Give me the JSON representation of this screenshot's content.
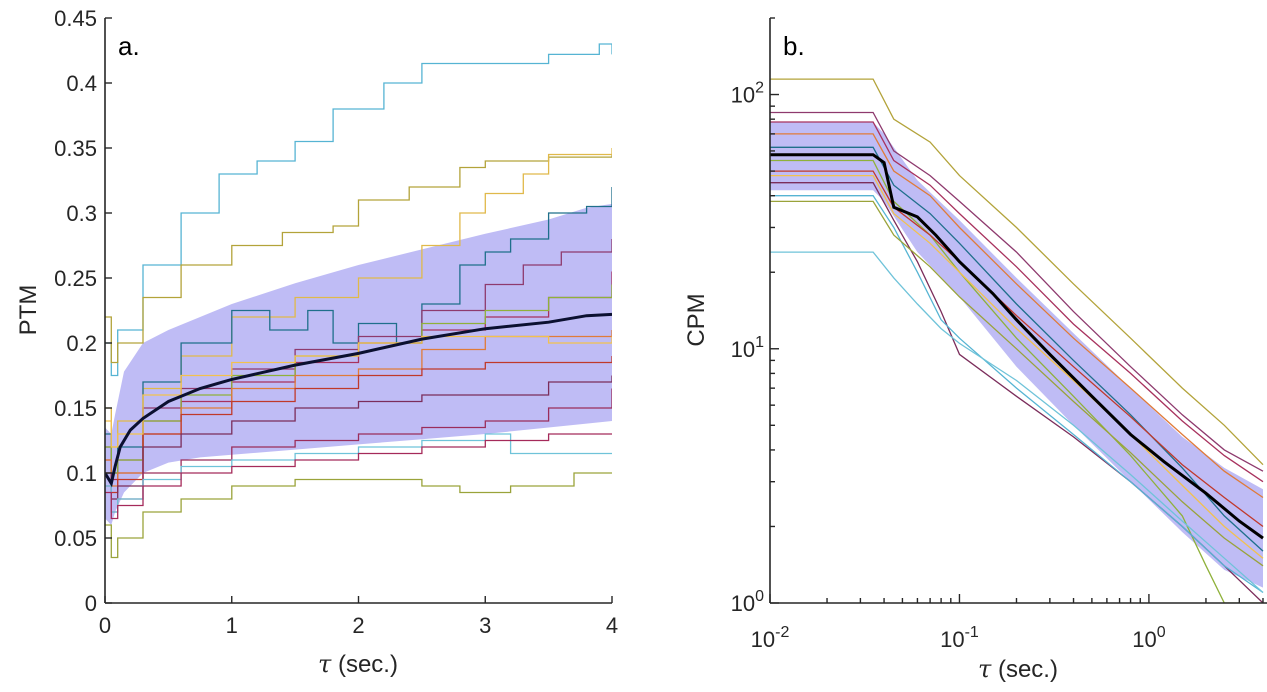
{
  "chart_data": [
    {
      "type": "line",
      "panel_label": "a.",
      "xlabel_symbol": "τ",
      "xlabel_text": " (sec.)",
      "ylabel": "PTM",
      "xlim": [
        0,
        4
      ],
      "ylim": [
        0,
        0.45
      ],
      "xticks": [
        0,
        1,
        2,
        3,
        4
      ],
      "xtick_labels": [
        "0",
        "1",
        "2",
        "3",
        "4"
      ],
      "yticks": [
        0,
        0.05,
        0.1,
        0.15,
        0.2,
        0.25,
        0.3,
        0.35,
        0.4,
        0.45
      ],
      "ytick_labels": [
        "0",
        "0.05",
        "0.1",
        "0.15",
        "0.2",
        "0.25",
        "0.3",
        "0.35",
        "0.4",
        "0.45"
      ],
      "grid": false,
      "band_color": "#a9a6f2",
      "mean_color": "#0b1030",
      "band": {
        "x": [
          0,
          0.05,
          0.08,
          0.15,
          0.3,
          0.5,
          0.75,
          1.0,
          1.5,
          2.0,
          2.5,
          3.0,
          3.5,
          3.8,
          4.0
        ],
        "lower": [
          0.065,
          0.06,
          0.07,
          0.085,
          0.1,
          0.108,
          0.112,
          0.114,
          0.118,
          0.122,
          0.126,
          0.13,
          0.135,
          0.138,
          0.14
        ],
        "upper": [
          0.135,
          0.13,
          0.145,
          0.178,
          0.2,
          0.21,
          0.22,
          0.23,
          0.246,
          0.26,
          0.272,
          0.284,
          0.295,
          0.304,
          0.307
        ]
      },
      "mean": {
        "x": [
          0,
          0.05,
          0.08,
          0.12,
          0.2,
          0.3,
          0.5,
          0.75,
          1.0,
          1.5,
          2.0,
          2.5,
          3.0,
          3.5,
          3.8,
          4.0
        ],
        "y": [
          0.1,
          0.092,
          0.105,
          0.12,
          0.133,
          0.142,
          0.155,
          0.165,
          0.172,
          0.183,
          0.192,
          0.203,
          0.211,
          0.216,
          0.221,
          0.222
        ]
      },
      "series": [
        {
          "color": "#56b4d3",
          "x": [
            0,
            0.05,
            0.1,
            0.3,
            0.6,
            0.9,
            1.2,
            1.5,
            1.8,
            2.0,
            2.2,
            2.5,
            2.8,
            3.0,
            3.5,
            3.9,
            4.0
          ],
          "y": [
            0.2,
            0.175,
            0.21,
            0.26,
            0.3,
            0.33,
            0.34,
            0.355,
            0.38,
            0.38,
            0.4,
            0.415,
            0.415,
            0.415,
            0.422,
            0.43,
            0.422
          ]
        },
        {
          "color": "#b3a33a",
          "x": [
            0,
            0.05,
            0.1,
            0.3,
            0.6,
            1.0,
            1.4,
            1.8,
            2.0,
            2.4,
            2.8,
            3.0,
            3.5,
            4.0
          ],
          "y": [
            0.22,
            0.185,
            0.2,
            0.235,
            0.26,
            0.275,
            0.285,
            0.29,
            0.31,
            0.32,
            0.335,
            0.34,
            0.343,
            0.345
          ]
        },
        {
          "color": "#e0b94a",
          "x": [
            0,
            0.05,
            0.1,
            0.3,
            0.6,
            1.0,
            1.5,
            2.0,
            2.5,
            2.8,
            3.0,
            3.3,
            3.5,
            4.0
          ],
          "y": [
            0.15,
            0.12,
            0.14,
            0.165,
            0.19,
            0.22,
            0.235,
            0.25,
            0.275,
            0.3,
            0.315,
            0.33,
            0.345,
            0.35
          ]
        },
        {
          "color": "#1f6f8b",
          "x": [
            0,
            0.05,
            0.1,
            0.3,
            0.6,
            1.0,
            1.3,
            1.6,
            1.8,
            2.0,
            2.3,
            2.5,
            2.8,
            3.0,
            3.2,
            3.5,
            3.8,
            4.0
          ],
          "y": [
            0.13,
            0.1,
            0.12,
            0.17,
            0.2,
            0.225,
            0.21,
            0.225,
            0.2,
            0.215,
            0.2,
            0.23,
            0.26,
            0.27,
            0.28,
            0.3,
            0.305,
            0.32
          ]
        },
        {
          "color": "#8e3a6e",
          "x": [
            0,
            0.05,
            0.1,
            0.3,
            0.6,
            1.0,
            1.5,
            2.0,
            2.5,
            3.0,
            3.3,
            3.6,
            4.0
          ],
          "y": [
            0.12,
            0.1,
            0.11,
            0.15,
            0.165,
            0.18,
            0.195,
            0.205,
            0.225,
            0.245,
            0.26,
            0.27,
            0.28
          ]
        },
        {
          "color": "#a8325e",
          "x": [
            0,
            0.05,
            0.1,
            0.3,
            0.6,
            1.0,
            1.5,
            2.0,
            2.5,
            3.0,
            3.5,
            4.0
          ],
          "y": [
            0.11,
            0.095,
            0.1,
            0.14,
            0.155,
            0.17,
            0.185,
            0.2,
            0.21,
            0.22,
            0.235,
            0.255
          ]
        },
        {
          "color": "#8fb13a",
          "x": [
            0,
            0.05,
            0.1,
            0.3,
            0.6,
            1.0,
            1.5,
            2.0,
            2.5,
            3.0,
            3.5,
            4.0
          ],
          "y": [
            0.12,
            0.1,
            0.11,
            0.14,
            0.16,
            0.175,
            0.19,
            0.2,
            0.215,
            0.225,
            0.235,
            0.245
          ]
        },
        {
          "color": "#e07b39",
          "x": [
            0,
            0.05,
            0.1,
            0.3,
            0.6,
            1.0,
            1.5,
            2.0,
            2.5,
            3.0,
            3.5,
            4.0
          ],
          "y": [
            0.11,
            0.09,
            0.1,
            0.13,
            0.15,
            0.165,
            0.175,
            0.18,
            0.195,
            0.205,
            0.205,
            0.21
          ]
        },
        {
          "color": "#c0392b",
          "x": [
            0,
            0.05,
            0.1,
            0.3,
            0.6,
            1.0,
            1.5,
            2.0,
            2.5,
            3.0,
            3.5,
            4.0
          ],
          "y": [
            0.1,
            0.085,
            0.095,
            0.13,
            0.145,
            0.155,
            0.165,
            0.175,
            0.18,
            0.185,
            0.185,
            0.19
          ]
        },
        {
          "color": "#7b2d5b",
          "x": [
            0,
            0.05,
            0.1,
            0.3,
            0.6,
            1.0,
            1.5,
            2.0,
            2.5,
            3.0,
            3.5,
            4.0
          ],
          "y": [
            0.1,
            0.08,
            0.09,
            0.12,
            0.13,
            0.14,
            0.15,
            0.155,
            0.16,
            0.16,
            0.17,
            0.175
          ]
        },
        {
          "color": "#f2c14e",
          "x": [
            0,
            0.05,
            0.1,
            0.3,
            0.6,
            1.0,
            1.5,
            2.0,
            2.5,
            3.0,
            3.5,
            4.0
          ],
          "y": [
            0.14,
            0.12,
            0.13,
            0.16,
            0.175,
            0.185,
            0.19,
            0.2,
            0.205,
            0.205,
            0.2,
            0.205
          ]
        },
        {
          "color": "#9b2d5b",
          "x": [
            0,
            0.05,
            0.1,
            0.3,
            0.6,
            1.0,
            1.5,
            2.0,
            2.5,
            3.0,
            3.5,
            4.0
          ],
          "y": [
            0.09,
            0.07,
            0.08,
            0.1,
            0.11,
            0.12,
            0.125,
            0.13,
            0.135,
            0.14,
            0.15,
            0.165
          ]
        },
        {
          "color": "#6fc3d9",
          "x": [
            0,
            0.05,
            0.1,
            0.3,
            0.6,
            1.0,
            1.5,
            2.0,
            2.5,
            3.0,
            3.2,
            3.5,
            4.0
          ],
          "y": [
            0.09,
            0.07,
            0.08,
            0.095,
            0.105,
            0.11,
            0.115,
            0.12,
            0.125,
            0.13,
            0.115,
            0.115,
            0.115
          ]
        },
        {
          "color": "#a52a5a",
          "x": [
            0,
            0.05,
            0.1,
            0.3,
            0.6,
            1.0,
            1.5,
            2.0,
            2.5,
            3.0,
            3.5,
            4.0
          ],
          "y": [
            0.085,
            0.065,
            0.075,
            0.09,
            0.1,
            0.105,
            0.11,
            0.115,
            0.12,
            0.125,
            0.13,
            0.13
          ]
        },
        {
          "color": "#9aa33a",
          "x": [
            0,
            0.05,
            0.1,
            0.3,
            0.6,
            1.0,
            1.5,
            2.0,
            2.5,
            2.8,
            3.0,
            3.2,
            3.5,
            3.7,
            4.0
          ],
          "y": [
            0.06,
            0.035,
            0.05,
            0.07,
            0.08,
            0.09,
            0.095,
            0.095,
            0.09,
            0.085,
            0.085,
            0.09,
            0.09,
            0.1,
            0.1
          ]
        }
      ]
    },
    {
      "type": "line",
      "panel_label": "b.",
      "xlabel_symbol": "τ",
      "xlabel_text": " (sec.)",
      "ylabel": "CPM",
      "xscale": "log",
      "yscale": "log",
      "xlim": [
        0.01,
        4.2
      ],
      "ylim": [
        1,
        200
      ],
      "xtick_labels": [
        {
          "value": 0.01,
          "base": "10",
          "exp": "-2"
        },
        {
          "value": 0.1,
          "base": "10",
          "exp": "-1"
        },
        {
          "value": 1,
          "base": "10",
          "exp": "0"
        }
      ],
      "ytick_labels": [
        {
          "value": 1,
          "base": "10",
          "exp": "0"
        },
        {
          "value": 10,
          "base": "10",
          "exp": "1"
        },
        {
          "value": 100,
          "base": "10",
          "exp": "2"
        }
      ],
      "grid": false,
      "band_color": "#a9a6f2",
      "mean_color": "#000000",
      "band": {
        "x": [
          0.01,
          0.035,
          0.04,
          0.06,
          0.1,
          0.2,
          0.4,
          0.8,
          1.5,
          2.5,
          4.0
        ],
        "lower": [
          42,
          42,
          38,
          24,
          16,
          8.5,
          5.0,
          3.0,
          1.9,
          1.35,
          1.15
        ],
        "upper": [
          78,
          78,
          70,
          46,
          32,
          19,
          11.5,
          7.0,
          4.5,
          3.4,
          2.8
        ]
      },
      "mean": {
        "x": [
          0.01,
          0.035,
          0.04,
          0.045,
          0.06,
          0.075,
          0.1,
          0.15,
          0.2,
          0.3,
          0.5,
          0.8,
          1.2,
          2.0,
          3.0,
          4.0
        ],
        "y": [
          58,
          58,
          54,
          36,
          33,
          28,
          22,
          16.5,
          13,
          9.5,
          6.5,
          4.6,
          3.6,
          2.7,
          2.1,
          1.8
        ]
      },
      "series": [
        {
          "color": "#b3a33a",
          "x": [
            0.01,
            0.035,
            0.045,
            0.07,
            0.1,
            0.2,
            0.4,
            0.8,
            1.5,
            2.5,
            4.0
          ],
          "y": [
            115,
            115,
            80,
            65,
            48,
            30,
            18,
            11,
            7,
            5,
            3.5
          ]
        },
        {
          "color": "#8e3a6e",
          "x": [
            0.01,
            0.035,
            0.045,
            0.07,
            0.1,
            0.2,
            0.4,
            0.8,
            1.5,
            2.5,
            4.0
          ],
          "y": [
            85,
            85,
            60,
            48,
            38,
            24,
            14,
            8.5,
            5.5,
            4.0,
            3.3
          ]
        },
        {
          "color": "#a8325e",
          "x": [
            0.01,
            0.035,
            0.045,
            0.07,
            0.1,
            0.2,
            0.4,
            0.8,
            1.5,
            2.5,
            4.0
          ],
          "y": [
            78,
            78,
            55,
            44,
            34,
            21,
            12.5,
            8.0,
            5.2,
            3.8,
            3.0
          ]
        },
        {
          "color": "#e07b39",
          "x": [
            0.01,
            0.035,
            0.045,
            0.07,
            0.1,
            0.2,
            0.4,
            0.8,
            1.5,
            2.5,
            4.0
          ],
          "y": [
            70,
            70,
            50,
            40,
            30,
            18,
            11,
            7.0,
            4.6,
            3.3,
            2.6
          ]
        },
        {
          "color": "#1f6f8b",
          "x": [
            0.01,
            0.035,
            0.045,
            0.07,
            0.1,
            0.2,
            0.4,
            0.8,
            1.5,
            2.5,
            4.0
          ],
          "y": [
            62,
            62,
            44,
            34,
            26,
            15,
            9.0,
            5.5,
            3.4,
            2.2,
            1.6
          ]
        },
        {
          "color": "#8fb13a",
          "x": [
            0.01,
            0.035,
            0.045,
            0.07,
            0.1,
            0.2,
            0.4,
            0.8,
            1.5,
            2.0,
            2.5,
            4.0
          ],
          "y": [
            55,
            55,
            38,
            28,
            20,
            11,
            6.5,
            3.8,
            2.2,
            1.4,
            1.0,
            1.0
          ]
        },
        {
          "color": "#c0392b",
          "x": [
            0.01,
            0.035,
            0.045,
            0.07,
            0.1,
            0.2,
            0.4,
            0.8,
            1.5,
            2.5,
            4.0
          ],
          "y": [
            50,
            50,
            36,
            28,
            22,
            13.5,
            8.5,
            5.4,
            3.5,
            2.6,
            2.0
          ]
        },
        {
          "color": "#f2c14e",
          "x": [
            0.01,
            0.035,
            0.045,
            0.07,
            0.1,
            0.2,
            0.4,
            0.8,
            1.5,
            2.5,
            4.0
          ],
          "y": [
            48,
            48,
            34,
            26,
            20,
            12,
            7.5,
            4.6,
            2.9,
            2.0,
            1.5
          ]
        },
        {
          "color": "#7b2d5b",
          "x": [
            0.01,
            0.035,
            0.045,
            0.06,
            0.08,
            0.1,
            0.2,
            0.4,
            0.8,
            1.5,
            2.5,
            4.0
          ],
          "y": [
            45,
            45,
            32,
            22,
            14,
            9.5,
            6.5,
            4.5,
            3.0,
            2.0,
            1.4,
            1.0
          ]
        },
        {
          "color": "#56b4d3",
          "x": [
            0.01,
            0.035,
            0.045,
            0.06,
            0.08,
            0.1,
            0.2,
            0.4,
            0.8,
            1.5,
            2.5,
            4.0
          ],
          "y": [
            40,
            40,
            30,
            20,
            13,
            11,
            7.0,
            4.6,
            3.0,
            2.0,
            1.4,
            1.1
          ]
        },
        {
          "color": "#6fc3d9",
          "x": [
            0.01,
            0.035,
            0.045,
            0.06,
            0.08,
            0.1,
            0.2,
            0.4,
            0.8,
            1.5,
            2.5,
            4.0
          ],
          "y": [
            24,
            24,
            19,
            15,
            12,
            10.5,
            7.5,
            5.0,
            3.2,
            2.1,
            1.5,
            1.1
          ]
        },
        {
          "color": "#9aa33a",
          "x": [
            0.01,
            0.035,
            0.045,
            0.07,
            0.1,
            0.2,
            0.4,
            0.8,
            1.5,
            2.5,
            4.0
          ],
          "y": [
            38,
            38,
            28,
            21,
            16,
            10,
            6.2,
            3.9,
            2.5,
            1.8,
            1.4
          ]
        }
      ]
    }
  ]
}
